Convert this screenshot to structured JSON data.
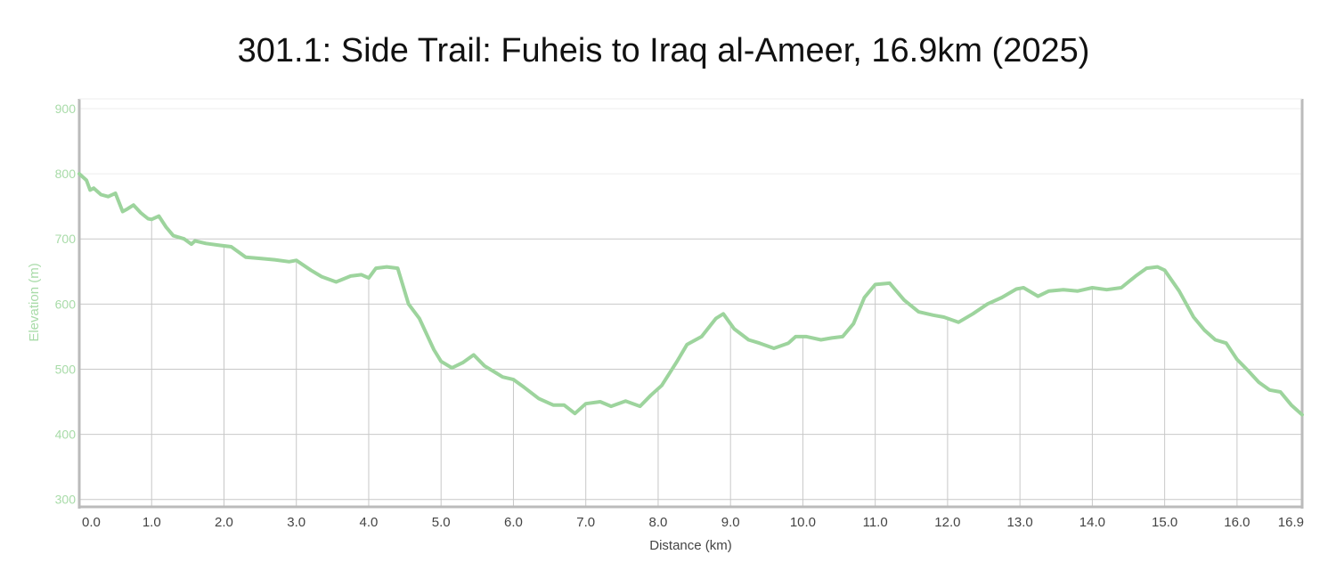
{
  "chart_data": {
    "type": "line",
    "title": "301.1: Side Trail: Fuheis to Iraq al-Ameer, 16.9km (2025)",
    "xlabel": "Distance (km)",
    "ylabel": "Elevation (m)",
    "xlim": [
      0,
      16.9
    ],
    "ylim": [
      290,
      915
    ],
    "x_ticks": [
      "0.0",
      "1.0",
      "2.0",
      "3.0",
      "4.0",
      "5.0",
      "6.0",
      "7.0",
      "8.0",
      "9.0",
      "10.0",
      "11.0",
      "12.0",
      "13.0",
      "14.0",
      "15.0",
      "16.0",
      "16.9"
    ],
    "y_ticks": [
      "300",
      "400",
      "500",
      "600",
      "700",
      "800",
      "900"
    ],
    "grid": true,
    "colors": {
      "line": "#9dd49d",
      "y_text": "#a8dba8",
      "grid": "#c8c8c8",
      "grid_light": "#eeeeee",
      "axis": "#bbbbbb"
    },
    "series": [
      {
        "x": [
          0.0,
          0.1,
          0.15,
          0.2,
          0.3,
          0.4,
          0.5,
          0.6,
          0.65,
          0.75,
          0.85,
          0.95,
          1.0,
          1.1,
          1.2,
          1.3,
          1.45,
          1.55,
          1.6,
          1.75,
          1.95,
          2.1,
          2.3,
          2.5,
          2.7,
          2.9,
          3.0,
          3.2,
          3.35,
          3.55,
          3.75,
          3.9,
          4.0,
          4.1,
          4.25,
          4.4,
          4.55,
          4.7,
          4.9,
          5.0,
          5.15,
          5.3,
          5.45,
          5.6,
          5.75,
          5.85,
          6.0,
          6.15,
          6.35,
          6.55,
          6.7,
          6.85,
          7.0,
          7.2,
          7.35,
          7.55,
          7.75,
          7.9,
          8.05,
          8.25,
          8.4,
          8.6,
          8.8,
          8.9,
          9.05,
          9.25,
          9.4,
          9.6,
          9.8,
          9.9,
          10.05,
          10.25,
          10.4,
          10.55,
          10.7,
          10.85,
          11.0,
          11.2,
          11.4,
          11.6,
          11.8,
          11.95,
          12.15,
          12.35,
          12.55,
          12.75,
          12.95,
          13.05,
          13.25,
          13.4,
          13.6,
          13.8,
          14.0,
          14.2,
          14.4,
          14.6,
          14.75,
          14.9,
          15.0,
          15.2,
          15.4,
          15.55,
          15.7,
          15.85,
          16.0,
          16.15,
          16.3,
          16.45,
          16.6,
          16.75,
          16.9
        ],
        "y": [
          800,
          790,
          775,
          778,
          768,
          765,
          770,
          742,
          745,
          752,
          740,
          731,
          730,
          735,
          718,
          705,
          700,
          692,
          697,
          693,
          690,
          688,
          672,
          670,
          668,
          665,
          667,
          652,
          642,
          634,
          643,
          645,
          640,
          655,
          657,
          655,
          600,
          578,
          530,
          512,
          502,
          510,
          522,
          505,
          495,
          488,
          484,
          472,
          455,
          445,
          445,
          432,
          447,
          450,
          443,
          451,
          443,
          460,
          475,
          510,
          538,
          550,
          578,
          585,
          562,
          545,
          540,
          532,
          540,
          550,
          550,
          545,
          548,
          550,
          570,
          610,
          630,
          632,
          606,
          588,
          583,
          580,
          572,
          585,
          600,
          610,
          623,
          625,
          612,
          620,
          622,
          620,
          625,
          622,
          625,
          643,
          655,
          657,
          652,
          620,
          580,
          560,
          545,
          540,
          515,
          498,
          480,
          468,
          465,
          445,
          430
        ]
      }
    ]
  }
}
